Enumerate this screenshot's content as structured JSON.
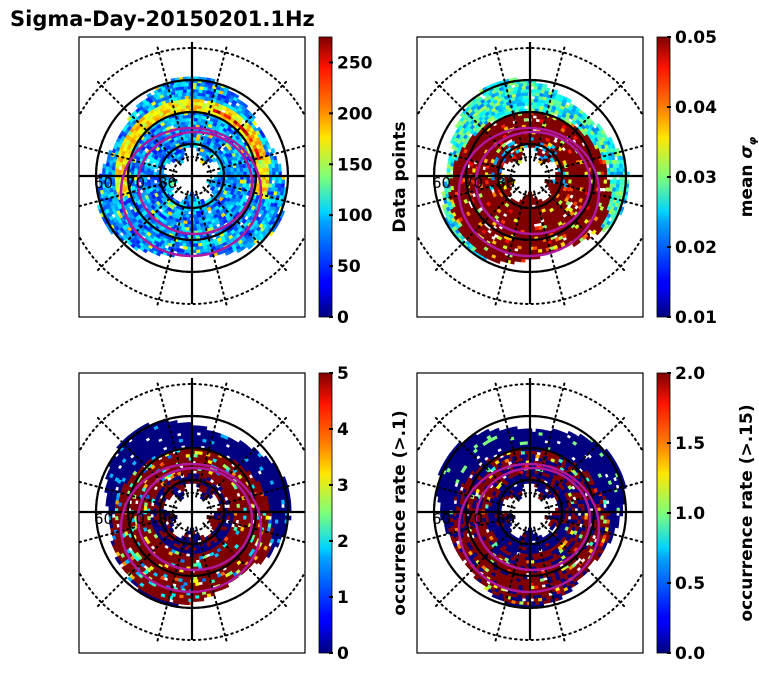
{
  "chart_data": {
    "type": "heatmap",
    "title": "Sigma-Day-20150201.1Hz",
    "projection": "polar (geomagnetic latitude, north pole at center)",
    "colormap": "jet",
    "latitude_labels": [
      "60",
      "70",
      "80"
    ],
    "latitude_circles_solid": [
      60,
      70,
      80
    ],
    "latitude_circles_dotted": [
      50,
      60,
      70,
      80
    ],
    "auroral_oval_color": "#b0189e",
    "panels": [
      {
        "id": "data-points",
        "colorbar_label": "Data points",
        "clim": [
          0,
          275
        ],
        "ticks": [
          "0",
          "50",
          "100",
          "150",
          "200",
          "250"
        ],
        "tick_values": [
          0,
          50,
          100,
          150,
          200,
          250
        ],
        "dominant_values": "mostly 0-150, band of ~150-200 near 65-70 lat, a few cells >250"
      },
      {
        "id": "mean-sigma-phi",
        "colorbar_label": "mean σ",
        "colorbar_label_subscript": "φ",
        "clim": [
          0.01,
          0.05
        ],
        "ticks": [
          "0.01",
          "0.02",
          "0.03",
          "0.04",
          "0.05"
        ],
        "tick_values": [
          0.01,
          0.02,
          0.03,
          0.04,
          0.05
        ],
        "dominant_values": "~0.02-0.03 at lower lat (dayside), saturated ≥0.05 within auroral oval"
      },
      {
        "id": "occurrence-rate-0.1",
        "colorbar_label": "occurrence rate (>.1)",
        "clim": [
          0,
          5
        ],
        "ticks": [
          "0",
          "1",
          "2",
          "3",
          "4",
          "5"
        ],
        "tick_values": [
          0,
          1,
          2,
          3,
          4,
          5
        ],
        "dominant_values": "0 outside oval, ≥5 inside oval"
      },
      {
        "id": "occurrence-rate-0.15",
        "colorbar_label": "occurrence rate (>.15)",
        "clim": [
          0.0,
          2.0
        ],
        "ticks": [
          "0.0",
          "0.5",
          "1.0",
          "1.5",
          "2.0"
        ],
        "tick_values": [
          0.0,
          0.5,
          1.0,
          1.5,
          2.0
        ],
        "dominant_values": "0 mostly, ≥2 in patches inside oval"
      }
    ]
  }
}
